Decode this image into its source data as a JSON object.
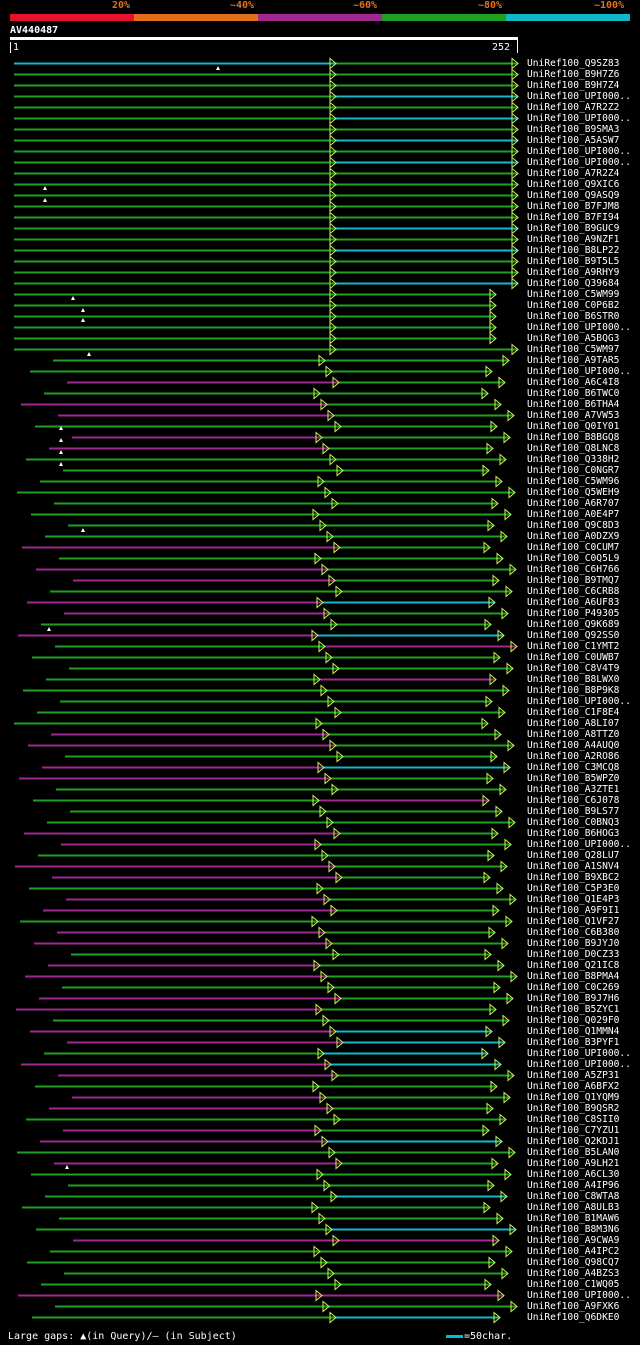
{
  "legend": {
    "labels": [
      "20%",
      "~40%",
      "~60%",
      "~80%",
      "~100%"
    ],
    "colors": [
      "#e8102c",
      "#e0701a",
      "#a02890",
      "#20a020",
      "#10b8c8"
    ]
  },
  "query": {
    "id": "AV440487",
    "start": "1",
    "end": "252"
  },
  "hits": [
    {
      "label": "UniRef100_Q9SZ83"
    },
    {
      "label": "UniRef100_B9H7Z6"
    },
    {
      "label": "UniRef100_B9H7Z4"
    },
    {
      "label": "UniRef100_UPI000.."
    },
    {
      "label": "UniRef100_A7R2Z2"
    },
    {
      "label": "UniRef100_UPI000.."
    },
    {
      "label": "UniRef100_B9SMA3"
    },
    {
      "label": "UniRef100_A5ASW7"
    },
    {
      "label": "UniRef100_UPI000.."
    },
    {
      "label": "UniRef100_UPI000.."
    },
    {
      "label": "UniRef100_A7R2Z4"
    },
    {
      "label": "UniRef100_Q9XIC6"
    },
    {
      "label": "UniRef100_Q9ASQ9"
    },
    {
      "label": "UniRef100_B7FJM8"
    },
    {
      "label": "UniRef100_B7FI94"
    },
    {
      "label": "UniRef100_B9GUC9"
    },
    {
      "label": "UniRef100_A9NZF1"
    },
    {
      "label": "UniRef100_B8LP22"
    },
    {
      "label": "UniRef100_B9T5L5"
    },
    {
      "label": "UniRef100_A9RHY9"
    },
    {
      "label": "UniRef100_Q39684"
    },
    {
      "label": "UniRef100_C5WM99"
    },
    {
      "label": "UniRef100_C0P6B2"
    },
    {
      "label": "UniRef100_B6STR0"
    },
    {
      "label": "UniRef100_UPI000.."
    },
    {
      "label": "UniRef100_A5BQG3"
    },
    {
      "label": "UniRef100_C5WM97"
    },
    {
      "label": "UniRef100_A9TAR5"
    },
    {
      "label": "UniRef100_UPI000.."
    },
    {
      "label": "UniRef100_A6C4I8"
    },
    {
      "label": "UniRef100_B6TWC0"
    },
    {
      "label": "UniRef100_B6THA4"
    },
    {
      "label": "UniRef100_A7VW53"
    },
    {
      "label": "UniRef100_Q0IY01"
    },
    {
      "label": "UniRef100_B8BGQ8"
    },
    {
      "label": "UniRef100_Q8LNC8"
    },
    {
      "label": "UniRef100_Q338H2"
    },
    {
      "label": "UniRef100_C0NGR7"
    },
    {
      "label": "UniRef100_C5WM96"
    },
    {
      "label": "UniRef100_Q5WEH9"
    },
    {
      "label": "UniRef100_A6R707"
    },
    {
      "label": "UniRef100_A0E4P7"
    },
    {
      "label": "UniRef100_Q9C8D3"
    },
    {
      "label": "UniRef100_A0DZX9"
    },
    {
      "label": "UniRef100_C0CUM7"
    },
    {
      "label": "UniRef100_C0Q5L9"
    },
    {
      "label": "UniRef100_C6H766"
    },
    {
      "label": "UniRef100_B9TMQ7"
    },
    {
      "label": "UniRef100_C6CRB8"
    },
    {
      "label": "UniRef100_A6UF83"
    },
    {
      "label": "UniRef100_P49305"
    },
    {
      "label": "UniRef100_Q9K689"
    },
    {
      "label": "UniRef100_Q92SS0"
    },
    {
      "label": "UniRef100_C1YMT2"
    },
    {
      "label": "UniRef100_C0UWB7"
    },
    {
      "label": "UniRef100_C8V4T9"
    },
    {
      "label": "UniRef100_B8LWX0"
    },
    {
      "label": "UniRef100_B8P9K8"
    },
    {
      "label": "UniRef100_UPI000.."
    },
    {
      "label": "UniRef100_C1F8E4"
    },
    {
      "label": "UniRef100_A8LI07"
    },
    {
      "label": "UniRef100_A8TTZ0"
    },
    {
      "label": "UniRef100_A4AUQ0"
    },
    {
      "label": "UniRef100_A2RO86"
    },
    {
      "label": "UniRef100_C3MCQ8"
    },
    {
      "label": "UniRef100_B5WPZ0"
    },
    {
      "label": "UniRef100_A3ZTE1"
    },
    {
      "label": "UniRef100_C6J078"
    },
    {
      "label": "UniRef100_B9LS77"
    },
    {
      "label": "UniRef100_C0BNQ3"
    },
    {
      "label": "UniRef100_B6HOG3"
    },
    {
      "label": "UniRef100_UPI000.."
    },
    {
      "label": "UniRef100_Q28LU7"
    },
    {
      "label": "UniRef100_A1SNV4"
    },
    {
      "label": "UniRef100_B9XBC2"
    },
    {
      "label": "UniRef100_C5P3E0"
    },
    {
      "label": "UniRef100_Q1E4P3"
    },
    {
      "label": "UniRef100_A9F9I1"
    },
    {
      "label": "UniRef100_Q1VF27"
    },
    {
      "label": "UniRef100_C6B380"
    },
    {
      "label": "UniRef100_B9JYJ0"
    },
    {
      "label": "UniRef100_D0CZ33"
    },
    {
      "label": "UniRef100_Q21IC8"
    },
    {
      "label": "UniRef100_B8PMA4"
    },
    {
      "label": "UniRef100_C0C269"
    },
    {
      "label": "UniRef100_B9J7H6"
    },
    {
      "label": "UniRef100_B5ZYC1"
    },
    {
      "label": "UniRef100_Q029F0"
    },
    {
      "label": "UniRef100_Q1MMN4"
    },
    {
      "label": "UniRef100_B3PYF1"
    },
    {
      "label": "UniRef100_UPI000.."
    },
    {
      "label": "UniRef100_UPI000.."
    },
    {
      "label": "UniRef100_A5ZP31"
    },
    {
      "label": "UniRef100_A6BFX2"
    },
    {
      "label": "UniRef100_Q1YQM9"
    },
    {
      "label": "UniRef100_B9QSR2"
    },
    {
      "label": "UniRef100_C8SII0"
    },
    {
      "label": "UniRef100_C7YZU1"
    },
    {
      "label": "UniRef100_Q2KDJ1"
    },
    {
      "label": "UniRef100_B5LAN0"
    },
    {
      "label": "UniRef100_A9LH21"
    },
    {
      "label": "UniRef100_A6CL30"
    },
    {
      "label": "UniRef100_A4IP96"
    },
    {
      "label": "UniRef100_C8WTA8"
    },
    {
      "label": "UniRef100_A8ULB3"
    },
    {
      "label": "UniRef100_B1MAW6"
    },
    {
      "label": "UniRef100_B8M3N6"
    },
    {
      "label": "UniRef100_A9CWA9"
    },
    {
      "label": "UniRef100_A4IPC2"
    },
    {
      "label": "UniRef100_Q98CQ7"
    },
    {
      "label": "UniRef100_A4BZS3"
    },
    {
      "label": "UniRef100_C1WQ05"
    },
    {
      "label": "UniRef100_UPI000.."
    },
    {
      "label": "UniRef100_A9FXK6"
    },
    {
      "label": "UniRef100_Q6DKE0"
    }
  ],
  "footer": {
    "gaps_text": "Large gaps: ▲(in Query)/– (in Subject)",
    "scale_text": "=50char."
  }
}
